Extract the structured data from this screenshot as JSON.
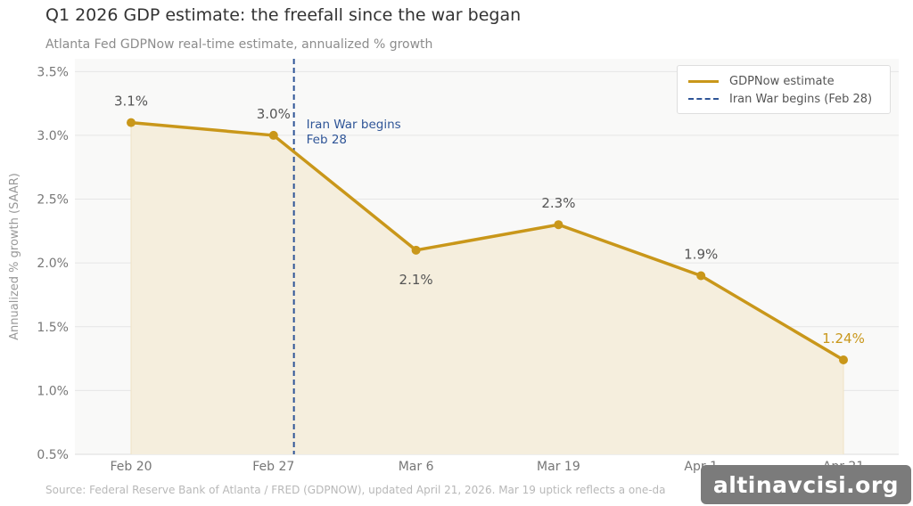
{
  "title": "Q1 2026 GDP estimate: the freefall since the war began",
  "subtitle": "Atlanta Fed GDPNow real-time estimate, annualized % growth",
  "source": "Source: Federal Reserve Bank of Atlanta / FRED (GDPNOW), updated April 21, 2026. Mar 19 uptick reflects a one-da",
  "watermark": "altinavcisi.org",
  "colors": {
    "line": "#c9971a",
    "fill": "#f5eedd",
    "war_line": "#2f5597",
    "plot_bg": "#f9f9f8",
    "grid": "#e6e6e6",
    "tick_text": "#777777",
    "data_label": "#555555"
  },
  "chart_data": {
    "type": "line",
    "title": "Q1 2026 GDP estimate: the freefall since the war began",
    "subtitle": "Atlanta Fed GDPNow real-time estimate, annualized % growth",
    "xlabel": "",
    "ylabel": "Annualized % growth (SAAR)",
    "categories": [
      "Feb 20",
      "Feb 27",
      "Mar 6",
      "Mar 19",
      "Apr 1",
      "Apr 21"
    ],
    "ylim": [
      0.5,
      3.6
    ],
    "yticks": [
      0.5,
      1.0,
      1.5,
      2.0,
      2.5,
      3.0,
      3.5
    ],
    "ytick_labels": [
      "0.5%",
      "1.0%",
      "1.5%",
      "2.0%",
      "2.5%",
      "3.0%",
      "3.5%"
    ],
    "grid": true,
    "legend_position": "top-right",
    "series": [
      {
        "name": "GDPNow estimate",
        "values": [
          3.1,
          3.0,
          2.1,
          2.3,
          1.9,
          1.24
        ],
        "labels": [
          "3.1%",
          "3.0%",
          "2.1%",
          "2.3%",
          "1.9%",
          "1.24%"
        ]
      }
    ],
    "war_marker": {
      "name": "Iran War begins (Feb 28)",
      "position_between": [
        1,
        2
      ],
      "fraction": 0.143,
      "annotation_line1": "Iran War begins",
      "annotation_line2": "Feb 28"
    }
  }
}
